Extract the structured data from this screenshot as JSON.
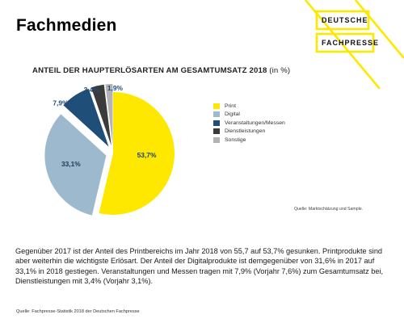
{
  "page": {
    "title": "Fachmedien",
    "logo_line1": "DEUTSCHE",
    "logo_line2": "FACHPRESSE",
    "body_text": "Gegenüber 2017 ist der Anteil des Printbereichs im Jahr 2018 von 55,7 auf 53,7% gesunken. Printprodukte sind aber weiterhin die wichtigste Erlösart. Der Anteil der Digitalprodukte ist demgegenüber von 31,6% in 2017 auf 33,1% in 2018 gestiegen. Veranstaltungen und Messen tragen mit 7,9% (Vorjahr 7,6%) zum Gesamtumsatz bei, Dienstleistungen mit 3,4% (Vorjahr 3,1%).",
    "source": "Quelle: Fachpresse-Statistik 2018 der Deutschen Fachpresse"
  },
  "colors": {
    "accent": "#FFE800",
    "print": "#FFE800",
    "digital": "#9DB9CE",
    "veranstaltungen": "#1F4E79",
    "dienstleistungen": "#3B3B3B",
    "sonstige": "#B3B3B3"
  },
  "chart_data": {
    "type": "pie",
    "title": "ANTEIL DER HAUPTERLÖSARTEN AM GESAMTUMSATZ 2018",
    "title_unit": "(in %)",
    "source": "Quelle: Marktschätzung und Sample.",
    "legend_position": "right",
    "slices": [
      {
        "name": "Print",
        "value": 53.7,
        "label": "53,7%",
        "color": "#FFE800"
      },
      {
        "name": "Digital",
        "value": 33.1,
        "label": "33,1%",
        "color": "#9DB9CE"
      },
      {
        "name": "Veranstaltungen/Messen",
        "value": 7.9,
        "label": "7,9%",
        "color": "#1F4E79"
      },
      {
        "name": "Dienstleistungen",
        "value": 3.4,
        "label": "3,4%",
        "color": "#3B3B3B"
      },
      {
        "name": "Sonstige",
        "value": 1.9,
        "label": "1,9%",
        "color": "#B3B3B3"
      }
    ]
  }
}
